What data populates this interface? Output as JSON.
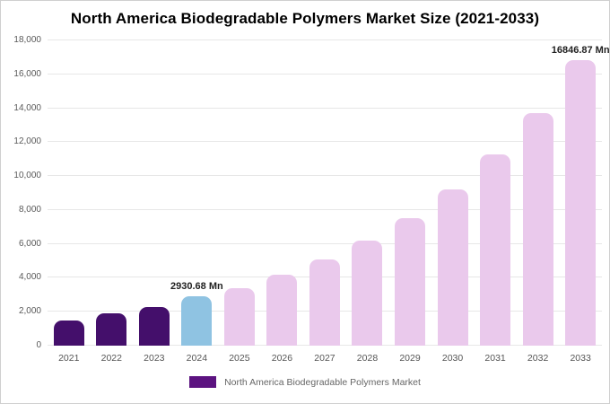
{
  "chart_data": {
    "type": "bar",
    "title": "North America Biodegradable Polymers Market Size (2021-2033)",
    "categories": [
      "2021",
      "2022",
      "2023",
      "2024",
      "2025",
      "2026",
      "2027",
      "2028",
      "2029",
      "2030",
      "2031",
      "2032",
      "2033"
    ],
    "values": [
      1500,
      1900,
      2300,
      2930.68,
      3400,
      4200,
      5100,
      6200,
      7500,
      9200,
      11300,
      13700,
      16846.87
    ],
    "bar_colors": [
      "#440f6b",
      "#440f6b",
      "#440f6b",
      "#8fc3e2",
      "#eac9ec",
      "#eac9ec",
      "#eac9ec",
      "#eac9ec",
      "#eac9ec",
      "#eac9ec",
      "#eac9ec",
      "#eac9ec",
      "#eac9ec"
    ],
    "annotations": [
      {
        "index": 3,
        "text": "2930.68 Mn"
      },
      {
        "index": 12,
        "text": "16846.87 Mn"
      }
    ],
    "ylim": [
      0,
      18000
    ],
    "ytick_step": 2000,
    "grid": true,
    "legend_position": "bottom",
    "legend": [
      {
        "label": "North America Biodegradable Polymers Market",
        "color": "#5c1380"
      }
    ]
  }
}
